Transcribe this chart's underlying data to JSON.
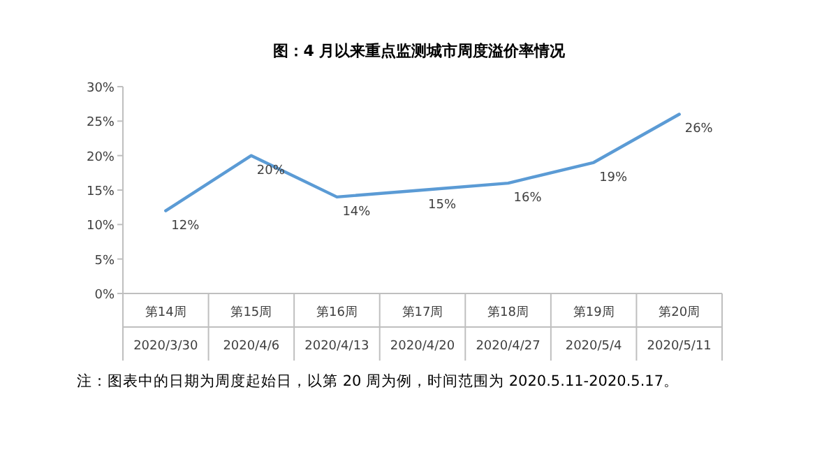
{
  "chart_data": {
    "type": "line",
    "title": "图：4 月以来重点监测城市周度溢价率情况",
    "categories": [
      "第14周\n2020/3/30",
      "第15周\n2020/4/6",
      "第16周\n2020/4/13",
      "第17周\n2020/4/20",
      "第18周\n2020/4/27",
      "第19周\n2020/5/4",
      "第20周\n2020/5/11"
    ],
    "series": [
      {
        "color": "#5b9bd5",
        "values": [
          12,
          20,
          14,
          15,
          16,
          19,
          26
        ],
        "value_labels": [
          "12%",
          "20%",
          "14%",
          "15%",
          "16%",
          "19%",
          "26%"
        ]
      }
    ],
    "ylim": [
      0,
      30
    ],
    "yticks": [
      {
        "value": 0,
        "label": "0%"
      },
      {
        "value": 5,
        "label": "5%"
      },
      {
        "value": 10,
        "label": "10%"
      },
      {
        "value": 15,
        "label": "15%"
      },
      {
        "value": 20,
        "label": "20%"
      },
      {
        "value": 25,
        "label": "25%"
      },
      {
        "value": 30,
        "label": "30%"
      }
    ],
    "annotations": [
      "注：图表中的日期为周度起始日，以第 20 周为例，时间范围为 2020.5.11-2020.5.17。"
    ]
  }
}
